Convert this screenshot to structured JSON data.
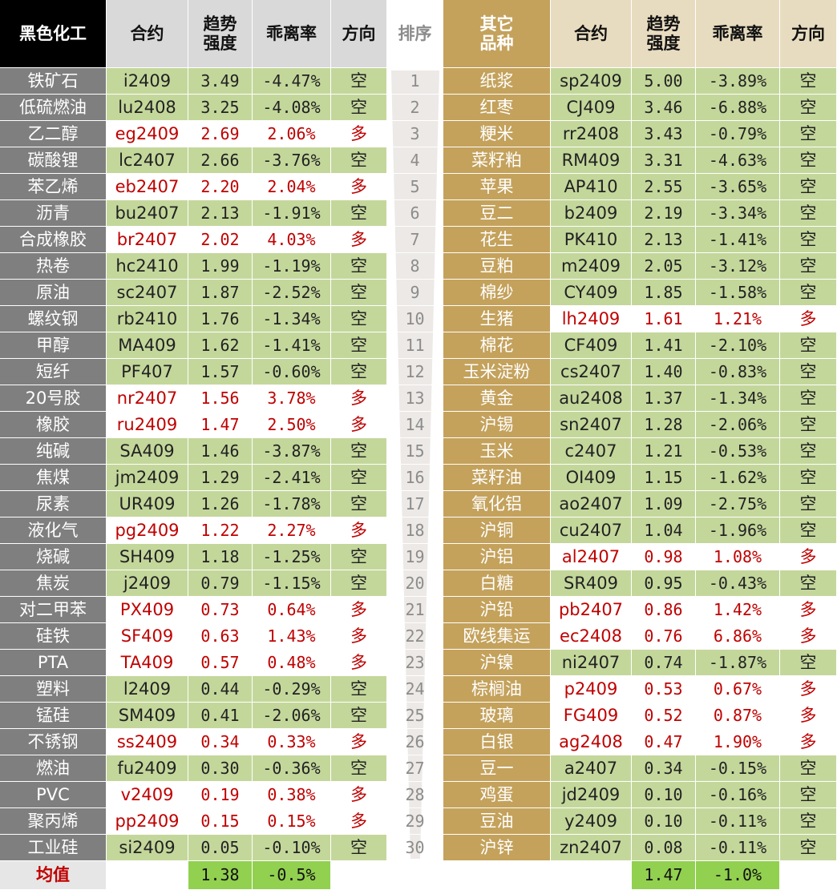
{
  "left": {
    "header": [
      "黑色化工",
      "合约",
      "趋势\n强度",
      "乖离率",
      "方向"
    ],
    "rows": [
      [
        "铁矿石",
        "i2409",
        "3.49",
        "-4.47%",
        "空"
      ],
      [
        "低硫燃油",
        "lu2408",
        "3.25",
        "-4.08%",
        "空"
      ],
      [
        "乙二醇",
        "eg2409",
        "2.69",
        "2.06%",
        "多"
      ],
      [
        "碳酸锂",
        "lc2407",
        "2.66",
        "-3.76%",
        "空"
      ],
      [
        "苯乙烯",
        "eb2407",
        "2.20",
        "2.04%",
        "多"
      ],
      [
        "沥青",
        "bu2407",
        "2.13",
        "-1.91%",
        "空"
      ],
      [
        "合成橡胶",
        "br2407",
        "2.02",
        "4.03%",
        "多"
      ],
      [
        "热卷",
        "hc2410",
        "1.99",
        "-1.19%",
        "空"
      ],
      [
        "原油",
        "sc2407",
        "1.87",
        "-2.52%",
        "空"
      ],
      [
        "螺纹钢",
        "rb2410",
        "1.76",
        "-1.34%",
        "空"
      ],
      [
        "甲醇",
        "MA409",
        "1.62",
        "-1.41%",
        "空"
      ],
      [
        "短纤",
        "PF407",
        "1.57",
        "-0.60%",
        "空"
      ],
      [
        "20号胶",
        "nr2407",
        "1.56",
        "3.78%",
        "多"
      ],
      [
        "橡胶",
        "ru2409",
        "1.47",
        "2.50%",
        "多"
      ],
      [
        "纯碱",
        "SA409",
        "1.46",
        "-3.87%",
        "空"
      ],
      [
        "焦煤",
        "jm2409",
        "1.29",
        "-2.41%",
        "空"
      ],
      [
        "尿素",
        "UR409",
        "1.26",
        "-1.78%",
        "空"
      ],
      [
        "液化气",
        "pg2409",
        "1.22",
        "2.27%",
        "多"
      ],
      [
        "烧碱",
        "SH409",
        "1.18",
        "-1.25%",
        "空"
      ],
      [
        "焦炭",
        "j2409",
        "0.79",
        "-1.15%",
        "空"
      ],
      [
        "对二甲苯",
        "PX409",
        "0.73",
        "0.64%",
        "多"
      ],
      [
        "硅铁",
        "SF409",
        "0.63",
        "1.43%",
        "多"
      ],
      [
        "PTA",
        "TA409",
        "0.57",
        "0.48%",
        "多"
      ],
      [
        "塑料",
        "l2409",
        "0.44",
        "-0.29%",
        "空"
      ],
      [
        "锰硅",
        "SM409",
        "0.41",
        "-2.06%",
        "空"
      ],
      [
        "不锈钢",
        "ss2409",
        "0.34",
        "0.33%",
        "多"
      ],
      [
        "燃油",
        "fu2409",
        "0.30",
        "-0.36%",
        "空"
      ],
      [
        "PVC",
        "v2409",
        "0.19",
        "0.38%",
        "多"
      ],
      [
        "聚丙烯",
        "pp2409",
        "0.15",
        "0.15%",
        "多"
      ],
      [
        "工业硅",
        "si2409",
        "0.05",
        "-0.10%",
        "空"
      ]
    ],
    "average": {
      "label": "均值",
      "strength": "1.38",
      "deviation": "-0.5%"
    }
  },
  "rank": {
    "header": "排序",
    "values": [
      1,
      2,
      3,
      4,
      5,
      6,
      7,
      8,
      9,
      10,
      11,
      12,
      13,
      14,
      15,
      16,
      17,
      18,
      19,
      20,
      21,
      22,
      23,
      24,
      25,
      26,
      27,
      28,
      29,
      30
    ]
  },
  "right": {
    "header": [
      "其它\n品种",
      "合约",
      "趋势\n强度",
      "乖离率",
      "方向"
    ],
    "rows": [
      [
        "纸浆",
        "sp2409",
        "5.00",
        "-3.89%",
        "空"
      ],
      [
        "红枣",
        "CJ409",
        "3.46",
        "-6.88%",
        "空"
      ],
      [
        "粳米",
        "rr2408",
        "3.43",
        "-0.79%",
        "空"
      ],
      [
        "菜籽粕",
        "RM409",
        "3.31",
        "-4.63%",
        "空"
      ],
      [
        "苹果",
        "AP410",
        "2.55",
        "-3.65%",
        "空"
      ],
      [
        "豆二",
        "b2409",
        "2.19",
        "-3.34%",
        "空"
      ],
      [
        "花生",
        "PK410",
        "2.13",
        "-1.41%",
        "空"
      ],
      [
        "豆粕",
        "m2409",
        "2.05",
        "-3.12%",
        "空"
      ],
      [
        "棉纱",
        "CY409",
        "1.85",
        "-1.58%",
        "空"
      ],
      [
        "生猪",
        "lh2409",
        "1.61",
        "1.21%",
        "多"
      ],
      [
        "棉花",
        "CF409",
        "1.41",
        "-2.10%",
        "空"
      ],
      [
        "玉米淀粉",
        "cs2407",
        "1.40",
        "-0.83%",
        "空"
      ],
      [
        "黄金",
        "au2408",
        "1.37",
        "-1.34%",
        "空"
      ],
      [
        "沪锡",
        "sn2407",
        "1.28",
        "-2.06%",
        "空"
      ],
      [
        "玉米",
        "c2407",
        "1.21",
        "-0.53%",
        "空"
      ],
      [
        "菜籽油",
        "OI409",
        "1.15",
        "-1.62%",
        "空"
      ],
      [
        "氧化铝",
        "ao2407",
        "1.09",
        "-2.75%",
        "空"
      ],
      [
        "沪铜",
        "cu2407",
        "1.04",
        "-1.96%",
        "空"
      ],
      [
        "沪铝",
        "al2407",
        "0.98",
        "1.08%",
        "多"
      ],
      [
        "白糖",
        "SR409",
        "0.95",
        "-0.43%",
        "空"
      ],
      [
        "沪铅",
        "pb2407",
        "0.86",
        "1.42%",
        "多"
      ],
      [
        "欧线集运",
        "ec2408",
        "0.76",
        "6.86%",
        "多"
      ],
      [
        "沪镍",
        "ni2407",
        "0.74",
        "-1.87%",
        "空"
      ],
      [
        "棕榈油",
        "p2409",
        "0.53",
        "0.67%",
        "多"
      ],
      [
        "玻璃",
        "FG409",
        "0.52",
        "0.87%",
        "多"
      ],
      [
        "白银",
        "ag2408",
        "0.47",
        "1.90%",
        "多"
      ],
      [
        "豆一",
        "a2407",
        "0.34",
        "-0.15%",
        "空"
      ],
      [
        "鸡蛋",
        "jd2409",
        "0.10",
        "-0.16%",
        "空"
      ],
      [
        "豆油",
        "y2409",
        "0.10",
        "-0.11%",
        "空"
      ],
      [
        "沪锌",
        "zn2407",
        "0.08",
        "-0.11%",
        "空"
      ]
    ],
    "average": {
      "strength": "1.47",
      "deviation": "-1.0%"
    }
  }
}
